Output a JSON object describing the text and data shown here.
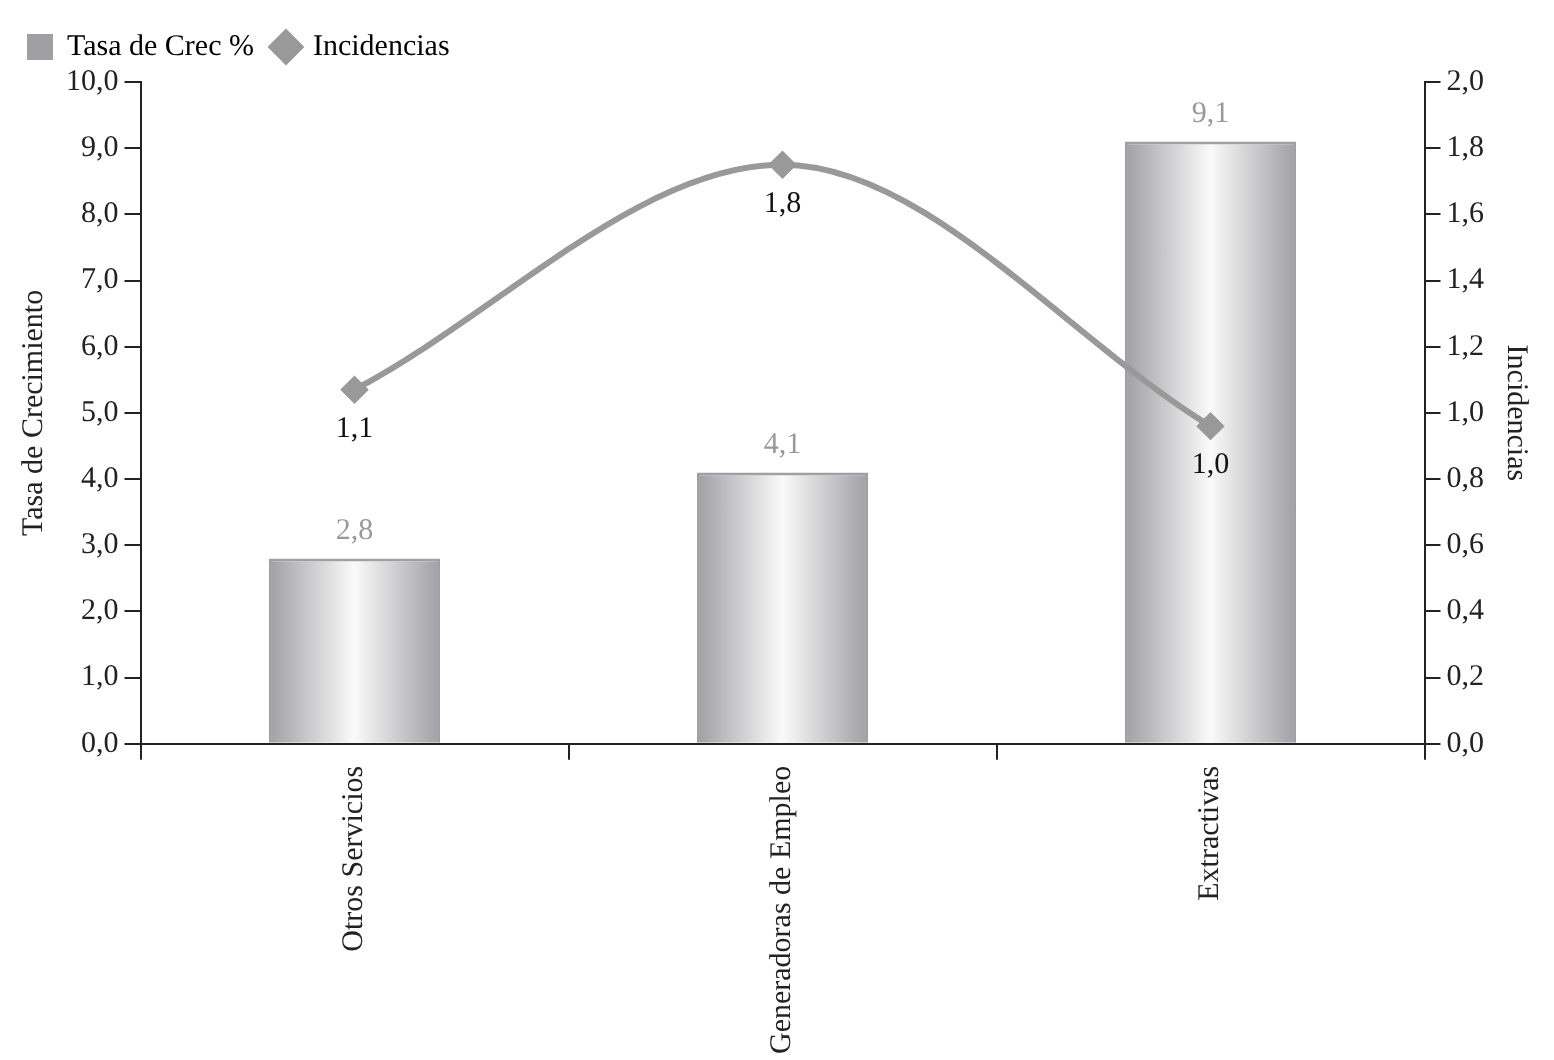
{
  "chart_data": {
    "type": "bar",
    "categories": [
      "Otros Servicios",
      "Generadoras de Empleo",
      "Extractivas"
    ],
    "xlabel": null,
    "ylabel": "Tasa de Crecimiento",
    "y2label": "Incidencias",
    "series": [
      {
        "name": "Tasa de Crec %",
        "color": "#a0a0a4",
        "values": [
          2.8,
          4.1,
          9.1
        ],
        "value_labels": [
          "2,8",
          "4,1",
          "9,1"
        ]
      },
      {
        "name": "Incidencias",
        "type": "line",
        "axis": "y2",
        "color": "#999999",
        "marker": "diamond",
        "values": [
          1.07,
          1.75,
          0.96
        ],
        "value_labels": [
          "1,1",
          "1,8",
          "1,0"
        ]
      }
    ],
    "ylim": [
      0,
      10
    ],
    "yticks": [
      {
        "value": 0,
        "label": "0,0"
      },
      {
        "value": 1,
        "label": "1,0"
      },
      {
        "value": 2,
        "label": "2,0"
      },
      {
        "value": 3,
        "label": "3,0"
      },
      {
        "value": 4,
        "label": "4,0"
      },
      {
        "value": 5,
        "label": "5,0"
      },
      {
        "value": 6,
        "label": "6,0"
      },
      {
        "value": 7,
        "label": "7,0"
      },
      {
        "value": 8,
        "label": "8,0"
      },
      {
        "value": 9,
        "label": "9,0"
      },
      {
        "value": 10,
        "label": "10,0"
      }
    ],
    "y2lim": [
      0,
      2
    ],
    "y2ticks": [
      {
        "value": 0,
        "label": "0,0"
      },
      {
        "value": 0.2,
        "label": "0,2"
      },
      {
        "value": 0.4,
        "label": "0,4"
      },
      {
        "value": 0.6,
        "label": "0,6"
      },
      {
        "value": 0.8,
        "label": "0,8"
      },
      {
        "value": 1,
        "label": "1,0"
      },
      {
        "value": 1.2,
        "label": "1,2"
      },
      {
        "value": 1.4,
        "label": "1,4"
      },
      {
        "value": 1.6,
        "label": "1,6"
      },
      {
        "value": 1.8,
        "label": "1,8"
      },
      {
        "value": 2,
        "label": "2,0"
      }
    ],
    "grid": false,
    "legend": "top left"
  }
}
